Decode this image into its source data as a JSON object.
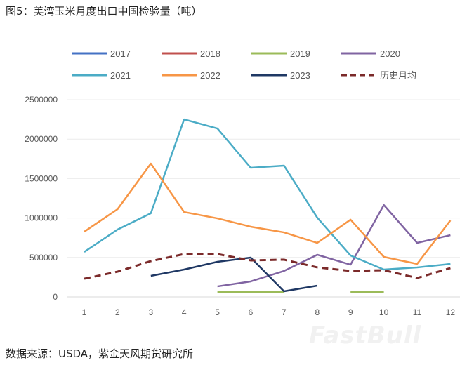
{
  "title": "图5：美湾玉米月度出口中国检验量（吨）",
  "source": "数据来源：USDA，紫金天风期货研究所",
  "watermark": "FastBull",
  "chart_data": {
    "type": "line",
    "title": "",
    "xlabel": "",
    "ylabel": "",
    "categories": [
      "1",
      "2",
      "3",
      "4",
      "5",
      "6",
      "7",
      "8",
      "9",
      "10",
      "11",
      "12"
    ],
    "ylim": [
      0,
      2500000
    ],
    "yticks": [
      "0",
      "500000",
      "1000000",
      "1500000",
      "2000000",
      "2500000"
    ],
    "grid": true,
    "legend_position": "top",
    "series": [
      {
        "name": "2017",
        "color": "#4472c4",
        "dashed": false,
        "values": [
          null,
          null,
          null,
          null,
          null,
          null,
          null,
          null,
          null,
          null,
          null,
          null
        ]
      },
      {
        "name": "2018",
        "color": "#c0504d",
        "dashed": false,
        "values": [
          null,
          null,
          null,
          null,
          null,
          null,
          null,
          null,
          null,
          null,
          null,
          null
        ]
      },
      {
        "name": "2019",
        "color": "#9bbb59",
        "dashed": false,
        "values": [
          null,
          null,
          null,
          null,
          62000,
          62000,
          62000,
          null,
          62000,
          62000,
          null,
          null
        ]
      },
      {
        "name": "2020",
        "color": "#8064a2",
        "dashed": false,
        "values": [
          null,
          null,
          null,
          null,
          133000,
          196000,
          329000,
          534000,
          409000,
          1165000,
          685000,
          783000
        ]
      },
      {
        "name": "2021",
        "color": "#4bacc6",
        "dashed": false,
        "values": [
          570000,
          854000,
          1060000,
          2250000,
          2135000,
          1637000,
          1664000,
          1005000,
          525000,
          347000,
          374000,
          418000
        ]
      },
      {
        "name": "2022",
        "color": "#f79646",
        "dashed": false,
        "values": [
          827000,
          1112000,
          1690000,
          1076000,
          996000,
          890000,
          818000,
          685000,
          979000,
          507000,
          418000,
          970000
        ]
      },
      {
        "name": "2023",
        "color": "#1f3864",
        "dashed": false,
        "values": [
          null,
          null,
          267000,
          347000,
          445000,
          498000,
          71000,
          142000,
          null,
          null,
          null,
          null
        ]
      },
      {
        "name": "历史月均",
        "color": "#7b2a2a",
        "dashed": true,
        "values": [
          231000,
          320000,
          454000,
          543000,
          543000,
          463000,
          472000,
          374000,
          329000,
          338000,
          240000,
          365000
        ]
      }
    ]
  }
}
